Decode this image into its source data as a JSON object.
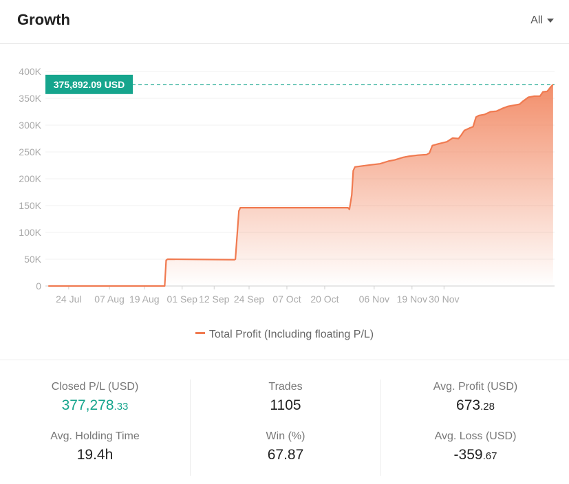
{
  "header": {
    "title": "Growth",
    "range": "All"
  },
  "chart_data": {
    "type": "area",
    "title": "Growth",
    "series": [
      {
        "name": "Total Profit (Including floating P/L)",
        "color": "#f07a50",
        "points": [
          [
            0,
            0
          ],
          [
            40,
            0
          ],
          [
            40.5,
            48000
          ],
          [
            41,
            50000
          ],
          [
            64,
            49000
          ],
          [
            64.3,
            50000
          ],
          [
            65.5,
            140000
          ],
          [
            66,
            146000
          ],
          [
            103,
            146000
          ],
          [
            103.5,
            143000
          ],
          [
            104.3,
            170000
          ],
          [
            104.8,
            215000
          ],
          [
            105.4,
            222000
          ],
          [
            108,
            224000
          ],
          [
            111,
            226000
          ],
          [
            114,
            228000
          ],
          [
            117,
            233000
          ],
          [
            119,
            235000
          ],
          [
            122,
            240000
          ],
          [
            124,
            242000
          ],
          [
            127,
            244000
          ],
          [
            130,
            245000
          ],
          [
            131,
            248000
          ],
          [
            132,
            262000
          ],
          [
            134,
            265000
          ],
          [
            137,
            269000
          ],
          [
            139,
            276000
          ],
          [
            141,
            275000
          ],
          [
            142,
            282000
          ],
          [
            143,
            290000
          ],
          [
            145,
            295000
          ],
          [
            146,
            297000
          ],
          [
            147,
            315000
          ],
          [
            148,
            318000
          ],
          [
            150,
            320000
          ],
          [
            152,
            325000
          ],
          [
            154,
            326000
          ],
          [
            156,
            331000
          ],
          [
            158,
            335000
          ],
          [
            160,
            337000
          ],
          [
            162,
            339000
          ],
          [
            163,
            344000
          ],
          [
            165,
            352000
          ],
          [
            167,
            354000
          ],
          [
            169,
            354000
          ],
          [
            170,
            362000
          ],
          [
            171.5,
            363000
          ],
          [
            172.5,
            370000
          ],
          [
            173.5,
            375892.09
          ]
        ]
      }
    ],
    "x_origin_date": "2023-07-17",
    "x_ticks": [
      {
        "label": "24 Jul",
        "x": 7
      },
      {
        "label": "07 Aug",
        "x": 21
      },
      {
        "label": "19 Aug",
        "x": 33
      },
      {
        "label": "01 Sep",
        "x": 46
      },
      {
        "label": "12 Sep",
        "x": 57
      },
      {
        "label": "24 Sep",
        "x": 69
      },
      {
        "label": "07 Oct",
        "x": 82
      },
      {
        "label": "20 Oct",
        "x": 95
      },
      {
        "label": "06 Nov",
        "x": 112
      },
      {
        "label": "19 Nov",
        "x": 125
      },
      {
        "label": "30 Nov",
        "x": 136
      }
    ],
    "xlim": [
      -1,
      174
    ],
    "y_ticks": [
      {
        "label": "0",
        "value": 0
      },
      {
        "label": "50K",
        "value": 50000
      },
      {
        "label": "100K",
        "value": 100000
      },
      {
        "label": "150K",
        "value": 150000
      },
      {
        "label": "200K",
        "value": 200000
      },
      {
        "label": "250K",
        "value": 250000
      },
      {
        "label": "300K",
        "value": 300000
      },
      {
        "label": "350K",
        "value": 350000
      },
      {
        "label": "400K",
        "value": 400000
      }
    ],
    "ylim": [
      0,
      400000
    ],
    "marker": {
      "label": "375,892.09 USD",
      "value": 375892.09
    },
    "grid": true,
    "legend": "bottom",
    "xlabel": "",
    "ylabel": ""
  },
  "stats": [
    {
      "label": "Closed P/L (USD)",
      "int": "377,278",
      "dec": ".33",
      "accent": true
    },
    {
      "label": "Trades",
      "int": "1105",
      "dec": "",
      "accent": false
    },
    {
      "label": "Avg. Profit (USD)",
      "int": "673",
      "dec": ".28",
      "accent": false
    },
    {
      "label": "Avg. Holding Time",
      "int": "19.4h",
      "dec": "",
      "accent": false
    },
    {
      "label": "Win (%)",
      "int": "67.87",
      "dec": "",
      "accent": false
    },
    {
      "label": "Avg. Loss (USD)",
      "int": "-359",
      "dec": ".67",
      "accent": false
    }
  ]
}
